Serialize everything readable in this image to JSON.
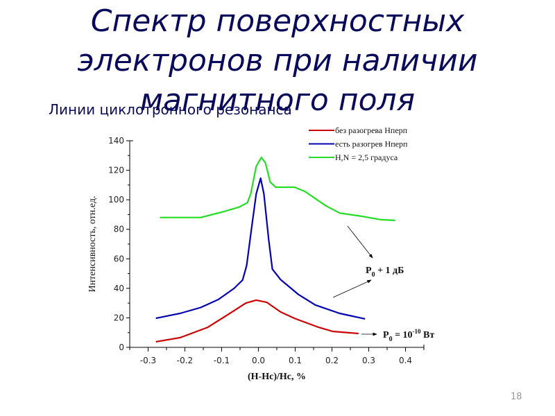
{
  "slide": {
    "title_lines": [
      "Спектр поверхностных",
      "электронов при наличии",
      "магнитного поля"
    ],
    "subtitle": "Линии циклотронного резонанса",
    "page_number": "18",
    "title_color": "#0a0a5a"
  },
  "chart_data": {
    "type": "line",
    "title": "Линии циклотронного резонанса",
    "xlabel": "(H-Hc)/Hc, %",
    "ylabel": "Интенсивность, отн.ед.",
    "xlim": [
      -0.35,
      0.45
    ],
    "ylim": [
      0,
      140
    ],
    "xticks": [
      -0.3,
      -0.2,
      -0.1,
      0.0,
      0.1,
      0.2,
      0.3,
      0.4
    ],
    "xtick_labels": [
      "-0.3",
      "-0.2",
      "-0.1",
      "0.0",
      "0.1",
      "0.2",
      "0.3",
      "0.4"
    ],
    "yticks": [
      0,
      20,
      40,
      60,
      80,
      100,
      120,
      140
    ],
    "ytick_labels": [
      "0",
      "20",
      "40",
      "60",
      "80",
      "100",
      "120",
      "140"
    ],
    "grid": false,
    "legend_position": "upper right",
    "series": [
      {
        "name": "без разогрева Нперп",
        "color": "#cc0000",
        "x": [
          -0.279,
          -0.213,
          -0.138,
          -0.081,
          -0.034,
          -0.006,
          0.023,
          0.06,
          0.098,
          0.164,
          0.202,
          0.272
        ],
        "y": [
          3.8,
          6.6,
          13.6,
          22.5,
          30,
          32,
          30.5,
          24,
          19.7,
          13.6,
          10.8,
          9.4
        ]
      },
      {
        "name": "есть разогрев Нперп",
        "color": "#0000b0",
        "x": [
          -0.279,
          -0.213,
          -0.157,
          -0.109,
          -0.066,
          -0.043,
          -0.032,
          -0.019,
          -0.006,
          0.006,
          0.015,
          0.028,
          0.038,
          0.06,
          0.108,
          0.155,
          0.221,
          0.29
        ],
        "y": [
          19.7,
          23,
          27,
          32.4,
          40,
          45.6,
          55.4,
          80,
          104,
          114.6,
          104,
          73,
          53,
          46,
          36,
          28.7,
          23,
          19.3
        ]
      },
      {
        "name": "H,N = 2,5 градуса",
        "color": "#22dd22",
        "x": [
          -0.268,
          -0.157,
          -0.1,
          -0.053,
          -0.03,
          -0.021,
          -0.006,
          0.008,
          0.019,
          0.032,
          0.047,
          0.098,
          0.126,
          0.183,
          0.221,
          0.277,
          0.334,
          0.372
        ],
        "y": [
          88,
          88,
          91.6,
          95,
          98,
          104,
          122.6,
          128.7,
          125,
          112,
          108.5,
          108.5,
          105.7,
          96,
          91,
          89,
          86.5,
          86
        ]
      }
    ],
    "annotations": [
      {
        "text_main": "P",
        "text_sub": "0",
        "text_rest": " + 1 дБ",
        "arrows_from": [
          "green",
          "blue"
        ]
      },
      {
        "text_main": "P",
        "text_sub": "0",
        "text_rest": " = 10",
        "text_sup": "-10",
        "text_tail": " Вт",
        "arrows_from": [
          "red"
        ]
      }
    ]
  }
}
